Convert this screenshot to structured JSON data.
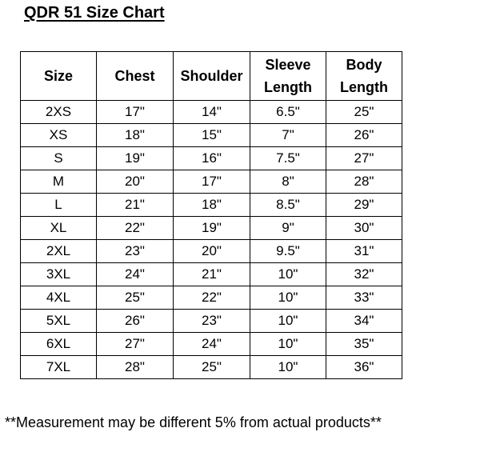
{
  "title": "QDR 51 Size Chart",
  "table": {
    "headers": [
      "Size",
      "Chest",
      "Shoulder",
      "Sleeve Length",
      "Body Length"
    ],
    "rows": [
      [
        "2XS",
        "17\"",
        "14\"",
        "6.5\"",
        "25\""
      ],
      [
        "XS",
        "18\"",
        "15\"",
        "7\"",
        "26\""
      ],
      [
        "S",
        "19\"",
        "16\"",
        "7.5\"",
        "27\""
      ],
      [
        "M",
        "20\"",
        "17\"",
        "8\"",
        "28\""
      ],
      [
        "L",
        "21\"",
        "18\"",
        "8.5\"",
        "29\""
      ],
      [
        "XL",
        "22\"",
        "19\"",
        "9\"",
        "30\""
      ],
      [
        "2XL",
        "23\"",
        "20\"",
        "9.5\"",
        "31\""
      ],
      [
        "3XL",
        "24\"",
        "21\"",
        "10\"",
        "32\""
      ],
      [
        "4XL",
        "25\"",
        "22\"",
        "10\"",
        "33\""
      ],
      [
        "5XL",
        "26\"",
        "23\"",
        "10\"",
        "34\""
      ],
      [
        "6XL",
        "27\"",
        "24\"",
        "10\"",
        "35\""
      ],
      [
        "7XL",
        "28\"",
        "25\"",
        "10\"",
        "36\""
      ]
    ]
  },
  "note": "**Measurement may be different 5% from actual products**"
}
